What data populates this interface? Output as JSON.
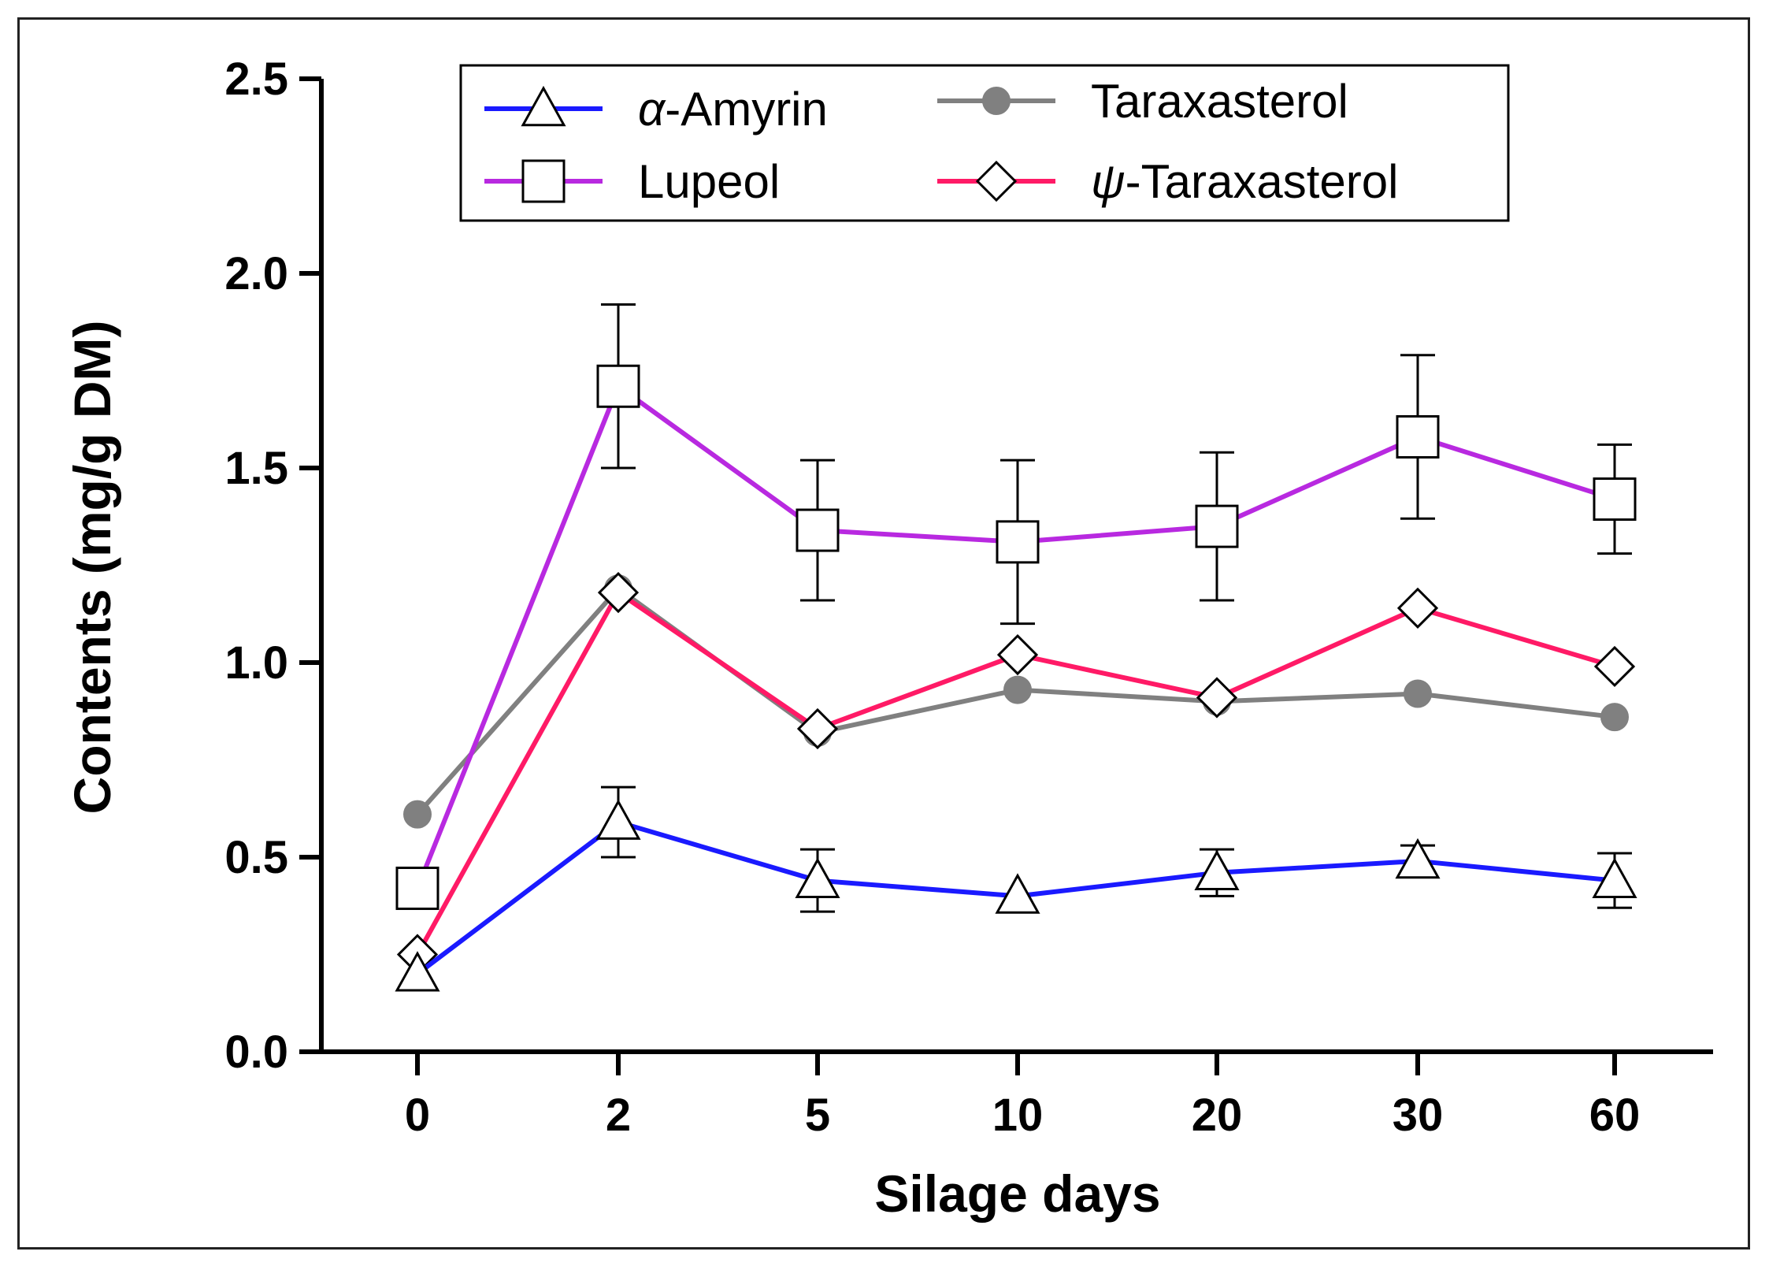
{
  "chart_data": {
    "type": "line",
    "title": "",
    "xlabel": "Silage days",
    "ylabel": "Contents  (mg/g DM)",
    "categories": [
      "0",
      "2",
      "5",
      "10",
      "20",
      "30",
      "60"
    ],
    "ylim": [
      0,
      2.5
    ],
    "yticks": [
      "0.0",
      "0.5",
      "1.0",
      "1.5",
      "2.0",
      "2.5"
    ],
    "legend_position": "top",
    "series": [
      {
        "name": "α-Amyrin",
        "legend_prefix": "α",
        "legend_suffix": "-Amyrin",
        "color": "#1a1aff",
        "marker": "triangle-open",
        "values": [
          0.2,
          0.59,
          0.44,
          0.4,
          0.46,
          0.49,
          0.44
        ],
        "errors": [
          0.0,
          0.09,
          0.08,
          0.0,
          0.06,
          0.04,
          0.07
        ]
      },
      {
        "name": "Lupeol",
        "legend_prefix": "",
        "legend_suffix": "Lupeol",
        "color": "#b829e0",
        "marker": "square-open",
        "values": [
          0.42,
          1.71,
          1.34,
          1.31,
          1.35,
          1.58,
          1.42
        ],
        "errors": [
          0.0,
          0.21,
          0.18,
          0.21,
          0.19,
          0.21,
          0.14
        ]
      },
      {
        "name": "Taraxasterol",
        "legend_prefix": "",
        "legend_suffix": "Taraxasterol",
        "color": "#808080",
        "marker": "circle-filled",
        "values": [
          0.61,
          1.19,
          0.82,
          0.93,
          0.9,
          0.92,
          0.86
        ],
        "errors": [
          0,
          0,
          0,
          0,
          0,
          0,
          0
        ]
      },
      {
        "name": "ψ-Taraxasterol",
        "legend_prefix": "ψ",
        "legend_suffix": "-Taraxasterol",
        "color": "#ff1a66",
        "marker": "diamond-open",
        "values": [
          0.25,
          1.18,
          0.83,
          1.02,
          0.91,
          1.14,
          0.99
        ],
        "errors": [
          0,
          0,
          0,
          0,
          0,
          0,
          0
        ]
      }
    ]
  }
}
